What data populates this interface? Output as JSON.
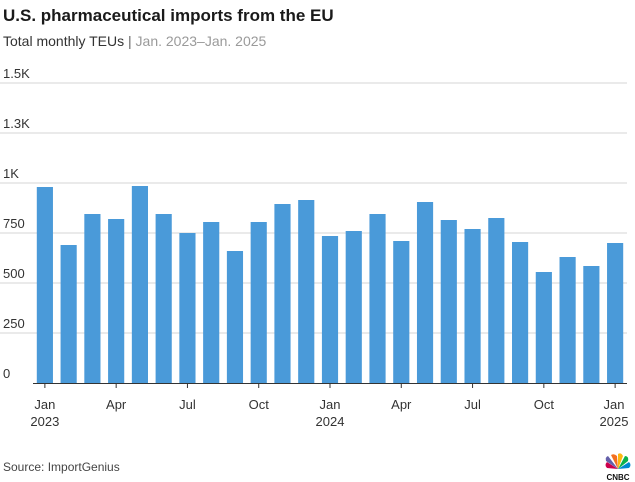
{
  "header": {
    "title": "U.S. pharmaceutical imports from the EU",
    "subtitle_main": "Total monthly TEUs",
    "subtitle_sep": "|",
    "subtitle_range": "Jan. 2023–Jan. 2025"
  },
  "footer": {
    "source": "Source: ImportGenius",
    "logo_text": "CNBC"
  },
  "colors": {
    "bar": "#4a9ad9",
    "grid": "#d4d4d4",
    "axis": "#333333"
  },
  "chart_data": {
    "type": "bar",
    "title": "U.S. pharmaceutical imports from the EU",
    "subtitle": "Total monthly TEUs | Jan. 2023–Jan. 2025",
    "categories": [
      "Jan 2023",
      "Feb 2023",
      "Mar 2023",
      "Apr 2023",
      "May 2023",
      "Jun 2023",
      "Jul 2023",
      "Aug 2023",
      "Sep 2023",
      "Oct 2023",
      "Nov 2023",
      "Dec 2023",
      "Jan 2024",
      "Feb 2024",
      "Mar 2024",
      "Apr 2024",
      "May 2024",
      "Jun 2024",
      "Jul 2024",
      "Aug 2024",
      "Sep 2024",
      "Oct 2024",
      "Nov 2024",
      "Dec 2024",
      "Jan 2025"
    ],
    "values": [
      980,
      690,
      845,
      820,
      985,
      845,
      750,
      805,
      660,
      805,
      895,
      915,
      735,
      760,
      845,
      710,
      905,
      815,
      770,
      825,
      705,
      555,
      630,
      585,
      700
    ],
    "ylim": [
      0,
      1500
    ],
    "yticks": [
      0,
      250,
      500,
      750,
      1000,
      1250,
      1500
    ],
    "ytick_labels": [
      "0",
      "250",
      "500",
      "750",
      "1K",
      "1.3K",
      "1.5K"
    ],
    "xtick_labels": [
      {
        "index": 0,
        "line1": "Jan",
        "line2": "2023"
      },
      {
        "index": 3,
        "line1": "Apr",
        "line2": ""
      },
      {
        "index": 6,
        "line1": "Jul",
        "line2": ""
      },
      {
        "index": 9,
        "line1": "Oct",
        "line2": ""
      },
      {
        "index": 12,
        "line1": "Jan",
        "line2": "2024"
      },
      {
        "index": 15,
        "line1": "Apr",
        "line2": ""
      },
      {
        "index": 18,
        "line1": "Jul",
        "line2": ""
      },
      {
        "index": 21,
        "line1": "Oct",
        "line2": ""
      },
      {
        "index": 24,
        "line1": "Jan",
        "line2": "2025"
      }
    ],
    "grid": true,
    "legend": "none"
  }
}
